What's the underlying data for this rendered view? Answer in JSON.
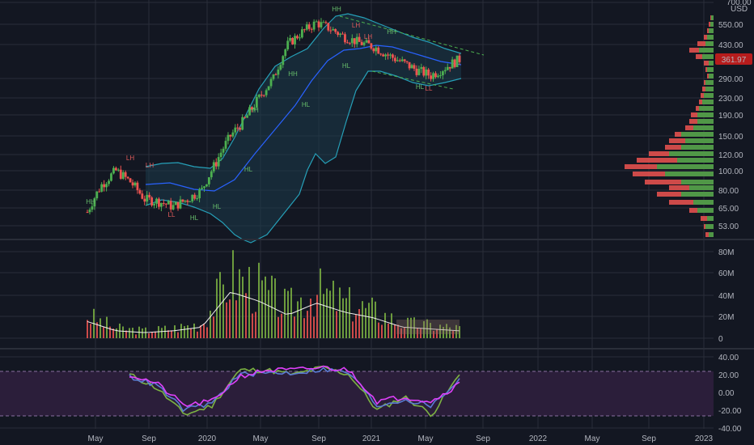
{
  "currency": "USD",
  "colors": {
    "bg": "#131722",
    "grid": "#2a2e39",
    "up": "#26a69a",
    "upCandle": "#4caf50",
    "down": "#ef5350",
    "bbBand": "#26a0b8",
    "bbFill": "#1b3a4b",
    "ma": "#2962ff",
    "rsiBg": "#2b1e3a",
    "magenta": "#e040fb",
    "blue": "#5b7bd5",
    "green": "#7cb342",
    "lastPrice": "#b71c1c"
  },
  "price_panel": {
    "last_price_label": "361.97",
    "y_ticks": [
      "700.00",
      "550.00",
      "430.00",
      "290.00",
      "230.00",
      "190.00",
      "150.00",
      "120.00",
      "100.00",
      "80.00",
      "65.00",
      "53.00"
    ],
    "annotations": [
      "HH",
      "LH",
      "LH",
      "LL",
      "HL",
      "HL",
      "HH",
      "HL",
      "HH",
      "HL",
      "HH",
      "LH",
      "HL",
      "HH",
      "LH",
      "HL",
      "LL"
    ]
  },
  "volume_panel": {
    "y_ticks": [
      "80M",
      "60M",
      "40M",
      "20M",
      "0"
    ]
  },
  "rsi_panel": {
    "y_ticks": [
      "40.00",
      "20.00",
      "0.00",
      "-20.00",
      "-40.00"
    ]
  },
  "x_axis": {
    "labels": [
      "May",
      "Sep",
      "2020",
      "May",
      "Sep",
      "2021",
      "May",
      "Sep",
      "2022",
      "May",
      "Sep",
      "2023"
    ]
  },
  "chart_data": [
    {
      "type": "candlestick",
      "title": "",
      "y_scale": "log",
      "ylim": [
        48,
        700
      ],
      "overlays": [
        "bollinger-bands",
        "moving-average",
        "swing-labels",
        "volume-profile"
      ],
      "x": [
        "2019-05",
        "2019-06",
        "2019-07",
        "2019-08",
        "2019-09",
        "2019-10",
        "2019-11",
        "2019-12",
        "2020-01",
        "2020-02",
        "2020-03",
        "2020-04",
        "2020-05",
        "2020-06",
        "2020-07",
        "2020-08",
        "2020-09",
        "2020-10",
        "2020-11",
        "2020-12",
        "2021-01",
        "2021-02",
        "2021-03",
        "2021-04",
        "2021-05",
        "2021-06",
        "2021-07"
      ],
      "close": [
        62,
        85,
        100,
        88,
        72,
        70,
        66,
        72,
        80,
        110,
        150,
        180,
        230,
        290,
        430,
        500,
        560,
        520,
        470,
        440,
        420,
        380,
        350,
        320,
        300,
        330,
        362
      ]
    },
    {
      "type": "bar",
      "title": "",
      "ylim": [
        0,
        90
      ],
      "ylabel": "",
      "x": [
        "2019-05",
        "2019-07",
        "2019-09",
        "2019-11",
        "2020-01",
        "2020-03",
        "2020-05",
        "2020-07",
        "2020-09",
        "2020-11",
        "2021-01",
        "2021-03",
        "2021-05",
        "2021-07"
      ],
      "values": [
        18,
        8,
        6,
        8,
        12,
        50,
        40,
        25,
        38,
        28,
        22,
        12,
        10,
        8
      ],
      "units": "M"
    },
    {
      "type": "line",
      "title": "",
      "ylim": [
        -40,
        40
      ],
      "x": [
        "2019-07",
        "2019-09",
        "2019-11",
        "2020-01",
        "2020-03",
        "2020-05",
        "2020-07",
        "2020-09",
        "2020-11",
        "2021-01",
        "2021-03",
        "2021-05",
        "2021-07"
      ],
      "series": [
        {
          "values": [
            20,
            5,
            -25,
            -15,
            25,
            25,
            20,
            28,
            20,
            -20,
            -5,
            -25,
            20
          ]
        },
        {
          "values": [
            18,
            8,
            -20,
            -12,
            20,
            22,
            22,
            26,
            22,
            -15,
            -8,
            -15,
            15
          ]
        },
        {
          "values": [
            20,
            10,
            -15,
            -10,
            18,
            25,
            25,
            28,
            25,
            -10,
            -5,
            -10,
            10
          ]
        }
      ]
    }
  ]
}
